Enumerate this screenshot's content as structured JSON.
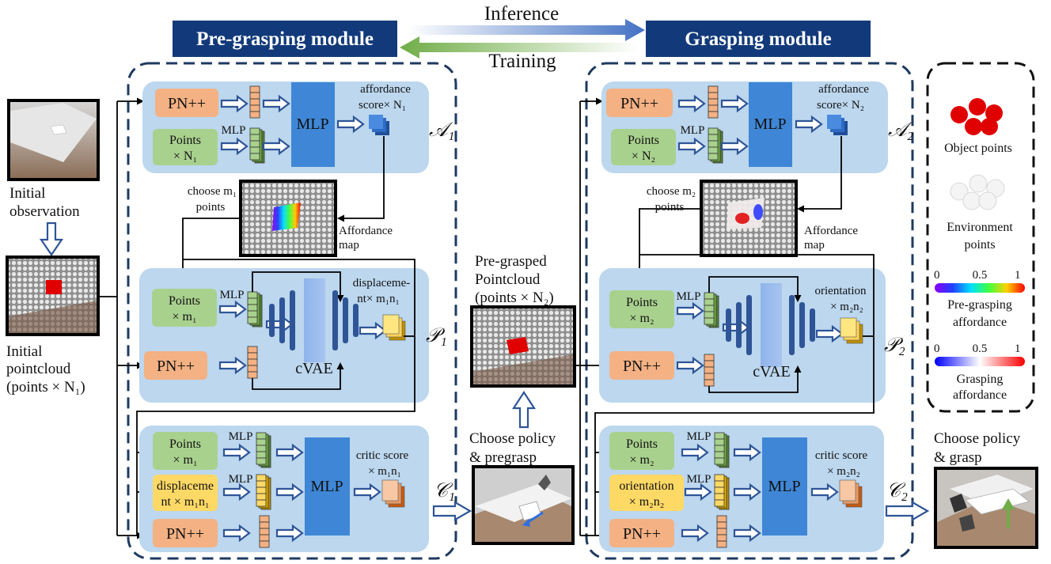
{
  "header": {
    "pre_module": "Pre-grasping module",
    "grasp_module": "Grasping module",
    "inference": "Inference",
    "training": "Training"
  },
  "left_inputs": {
    "initial_observation": [
      "Initial",
      "observation"
    ],
    "initial_pointcloud": [
      "Initial",
      "pointcloud",
      "(points × N₁)"
    ]
  },
  "pre": {
    "A": {
      "pn": "PN++",
      "points": [
        "Points",
        "× N₁"
      ],
      "mlp_small": "MLP",
      "mlp": "MLP",
      "out": [
        "affordance",
        "score× N₁"
      ],
      "tag": "𝒜₁"
    },
    "choose": [
      "choose m₁",
      "points"
    ],
    "affmap": [
      "Affordance",
      "map"
    ],
    "P": {
      "points": [
        "Points",
        "× m₁"
      ],
      "mlp_small": "MLP",
      "pn": "PN++",
      "cvae": "cVAE",
      "out": [
        "displaceme-",
        "nt× m₁n₁"
      ],
      "tag": "𝒫₁"
    },
    "C": {
      "points": [
        "Points",
        "× m₁"
      ],
      "mlp_small1": "MLP",
      "disp": [
        "displaceme",
        "nt × m₁n₁"
      ],
      "mlp_small2": "MLP",
      "pn": "PN++",
      "mlp": "MLP",
      "out": [
        "critic score",
        "× m₁n₁"
      ],
      "tag": "𝒞₁"
    }
  },
  "middle": {
    "title": [
      "Pre-grasped",
      "Pointcloud",
      "(points × N₂)"
    ],
    "choose": [
      "Choose policy",
      "& pregrasp"
    ]
  },
  "grasp": {
    "A": {
      "pn": "PN++",
      "points": [
        "Points",
        "× N₂"
      ],
      "mlp_small": "MLP",
      "mlp": "MLP",
      "out": [
        "affordance",
        "score× N₂"
      ],
      "tag": "𝒜₂"
    },
    "choose": [
      "choose m₂",
      "points"
    ],
    "affmap": [
      "Affordance",
      "map"
    ],
    "P": {
      "points": [
        "Points",
        "× m₂"
      ],
      "mlp_small": "MLP",
      "pn": "PN++",
      "cvae": "cVAE",
      "out": [
        "orientation",
        "× m₂n₂"
      ],
      "tag": "𝒫₂"
    },
    "C": {
      "points": [
        "Points",
        "× m₂"
      ],
      "mlp_small1": "MLP",
      "orient": [
        "orientation",
        "× m₂n₂"
      ],
      "mlp_small2": "MLP",
      "pn": "PN++",
      "mlp": "MLP",
      "out": [
        "critic score",
        "× m₂n₂"
      ],
      "tag": "𝒞₂"
    }
  },
  "legend": {
    "object_points": "Object points",
    "environment_points": [
      "Environment",
      "points"
    ],
    "pre_aff": [
      "Pre-grasping",
      "affordance"
    ],
    "grasp_aff": [
      "Grasping",
      "affordance"
    ],
    "scale": [
      "0",
      "0.5",
      "1"
    ]
  },
  "right": {
    "choose": [
      "Choose policy",
      "& grasp"
    ]
  },
  "colors": {
    "banner": "#123a7a",
    "panel": "#bcd7ee",
    "pn_box": "#f4b183",
    "points_box": "#a9d18e",
    "disp_box": "#ffd966",
    "mlp_box": "#3f87d6",
    "arrow_outline": "#2f5597",
    "object_red": "#e00000"
  }
}
